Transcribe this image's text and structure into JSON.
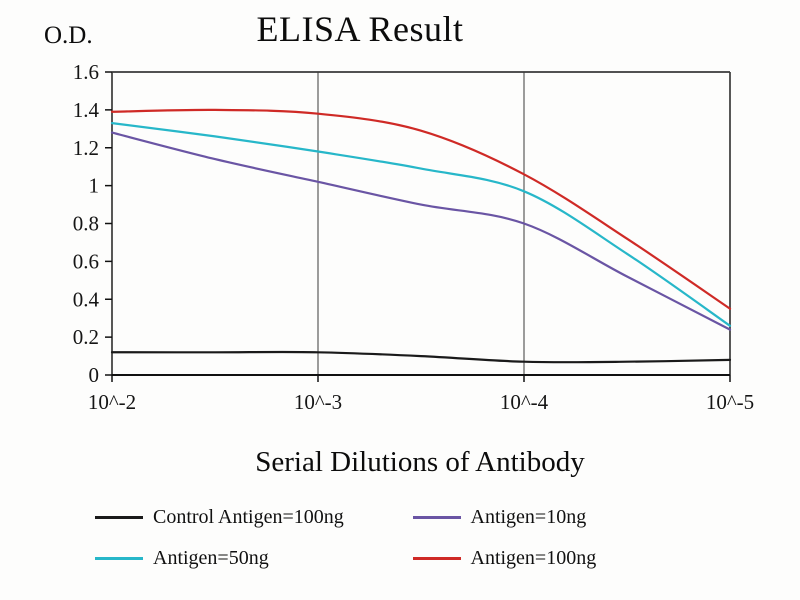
{
  "chart_data": {
    "type": "line",
    "title": "ELISA Result",
    "xlabel": "Serial Dilutions of Antibody",
    "ylabel": "O.D.",
    "x_ticks": [
      "10^-2",
      "10^-3",
      "10^-4",
      "10^-5"
    ],
    "y_ticks": [
      0,
      0.2,
      0.4,
      0.6,
      0.8,
      1,
      1.2,
      1.4,
      1.6
    ],
    "y_tick_labels": [
      "0",
      "0.2",
      "0.4",
      "0.6",
      "0.8",
      "1",
      "1.2",
      "1.4",
      "1.6"
    ],
    "ylim": [
      0,
      1.6
    ],
    "grid": "vertical-only",
    "legend_position": "bottom",
    "x": [
      0,
      0.5,
      1,
      1.5,
      2,
      2.5,
      3
    ],
    "series": [
      {
        "name": "Control Antigen=100ng",
        "color": "#1a1a1a",
        "values": [
          0.12,
          0.12,
          0.12,
          0.1,
          0.07,
          0.07,
          0.08
        ]
      },
      {
        "name": "Antigen=10ng",
        "color": "#6a55a4",
        "values": [
          1.28,
          1.14,
          1.02,
          0.9,
          0.8,
          0.52,
          0.24
        ]
      },
      {
        "name": "Antigen=50ng",
        "color": "#27b7c9",
        "values": [
          1.33,
          1.26,
          1.18,
          1.09,
          0.97,
          0.64,
          0.26
        ]
      },
      {
        "name": "Antigen=100ng",
        "color": "#cf2a26",
        "values": [
          1.39,
          1.4,
          1.38,
          1.29,
          1.06,
          0.72,
          0.35
        ]
      }
    ]
  }
}
